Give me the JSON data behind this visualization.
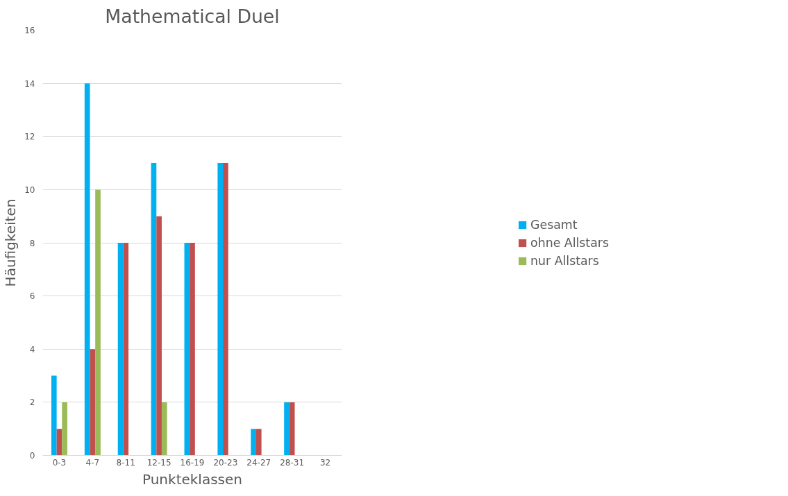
{
  "chart_data": {
    "type": "bar",
    "title": "Mathematical Duel",
    "xlabel": "Punkteklassen",
    "ylabel": "Häufigkeiten",
    "categories": [
      "0-3",
      "4-7",
      "8-11",
      "12-15",
      "16-19",
      "20-23",
      "24-27",
      "28-31",
      "32"
    ],
    "series": [
      {
        "name": "Gesamt",
        "color": "#00b0f0",
        "values": [
          3,
          14,
          8,
          11,
          8,
          11,
          1,
          2,
          0
        ]
      },
      {
        "name": "ohne Allstars",
        "color": "#c0504d",
        "values": [
          1,
          4,
          8,
          9,
          8,
          11,
          1,
          2,
          0
        ]
      },
      {
        "name": "nur Allstars",
        "color": "#9bbb59",
        "values": [
          2,
          10,
          0,
          2,
          0,
          0,
          0,
          0,
          0
        ]
      }
    ],
    "ylim": [
      0,
      16
    ],
    "yticks": [
      0,
      2,
      4,
      6,
      8,
      10,
      12,
      14,
      16
    ],
    "grid": "y",
    "legend": "right"
  }
}
